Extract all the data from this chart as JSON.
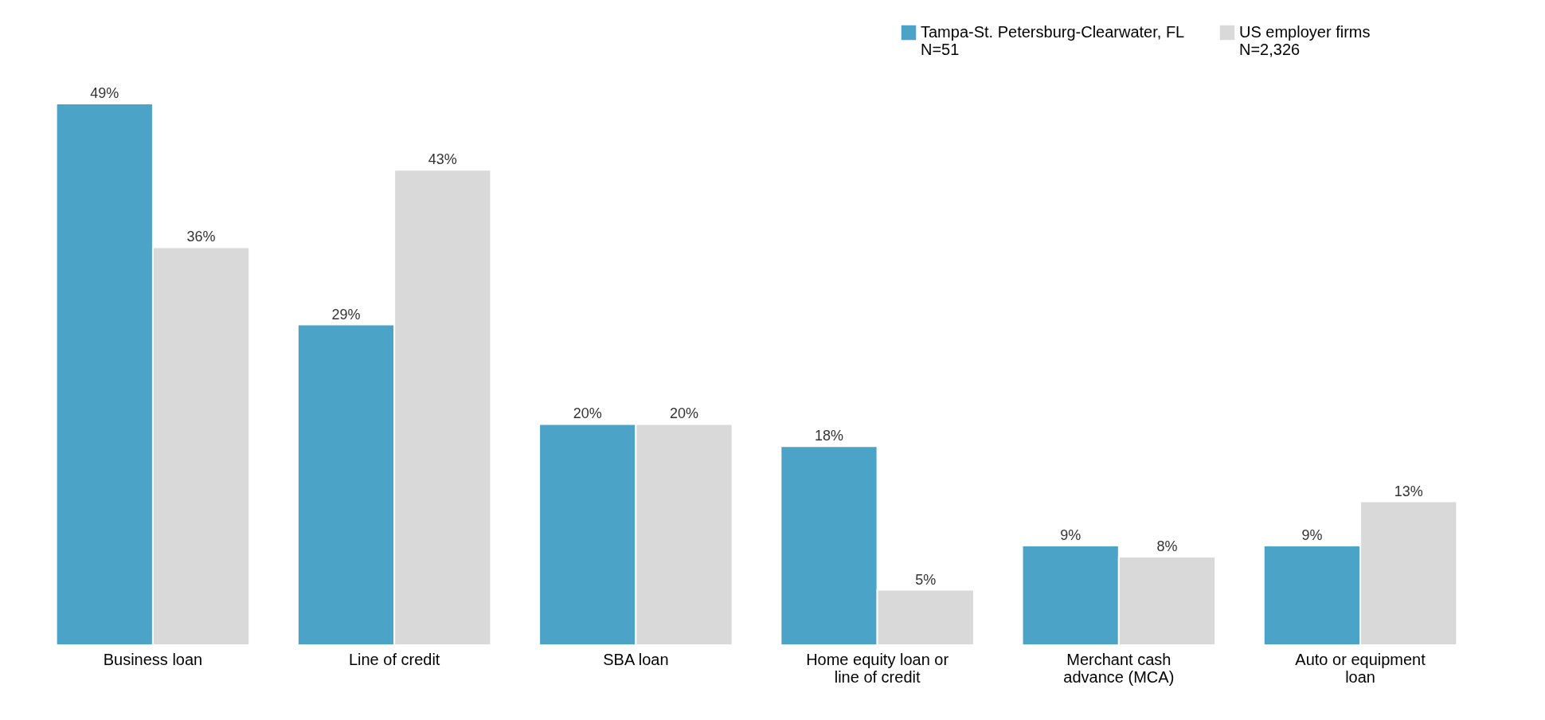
{
  "chart_data": {
    "type": "bar",
    "categories": [
      "Business loan",
      "Line of credit",
      "SBA loan",
      "Home equity loan or line of credit",
      "Merchant cash advance (MCA)",
      "Auto or equipment loan"
    ],
    "series": [
      {
        "name": "Tampa-St. Petersburg-Clearwater, FL\nN=51",
        "color": "#4ba3c7",
        "values": [
          49,
          29,
          20,
          18,
          9,
          9
        ],
        "value_labels": [
          "49%",
          "29%",
          "20%",
          "18%",
          "9%",
          "9%"
        ]
      },
      {
        "name": "US employer firms\nN=2,326",
        "color": "#d9d9d9",
        "values": [
          36,
          43,
          20,
          5,
          8,
          13
        ],
        "value_labels": [
          "36%",
          "43%",
          "20%",
          "5%",
          "8%",
          "13%"
        ]
      }
    ],
    "legend": "top right",
    "grid": false
  }
}
